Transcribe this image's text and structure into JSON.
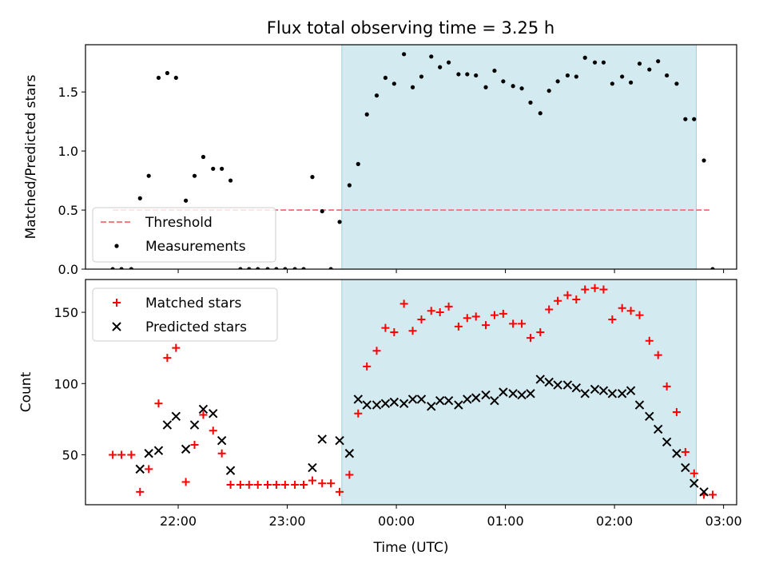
{
  "chart_data": [
    {
      "type": "scatter",
      "title": "Flux total observing time = 3.25 h",
      "xlabel": "",
      "ylabel": "Matched/Predicted stars",
      "x_unit": "time of day (UTC), hours after 00:00; 22:00 = -2",
      "xlim": [
        -2.85,
        3.12
      ],
      "ylim": [
        0,
        1.9
      ],
      "yticks": [
        0.0,
        0.5,
        1.0,
        1.5
      ],
      "ytick_labels": [
        "0.0",
        "0.5",
        "1.0",
        "1.5"
      ],
      "shaded_interval": [
        -0.5,
        2.75
      ],
      "shaded_color": "#d3eaf0",
      "legend": {
        "placement": "lower left",
        "entries": [
          "Threshold",
          "Measurements"
        ]
      },
      "threshold": {
        "name": "Threshold",
        "value": 0.5,
        "x_range": [
          -2.6,
          2.87
        ],
        "color": "#f08080",
        "style": "dashed"
      },
      "series": [
        {
          "name": "Measurements",
          "color": "#000000",
          "marker": "dot",
          "points": [
            [
              -2.6,
              0
            ],
            [
              -2.52,
              0
            ],
            [
              -2.43,
              0
            ],
            [
              -2.35,
              0.6
            ],
            [
              -2.27,
              0.79
            ],
            [
              -2.18,
              1.62
            ],
            [
              -2.1,
              1.66
            ],
            [
              -2.02,
              1.62
            ],
            [
              -1.93,
              0.58
            ],
            [
              -1.85,
              0.79
            ],
            [
              -1.77,
              0.95
            ],
            [
              -1.68,
              0.85
            ],
            [
              -1.6,
              0.85
            ],
            [
              -1.52,
              0.75
            ],
            [
              -1.43,
              0
            ],
            [
              -1.35,
              0
            ],
            [
              -1.27,
              0
            ],
            [
              -1.18,
              0
            ],
            [
              -1.1,
              0
            ],
            [
              -1.02,
              0
            ],
            [
              -0.93,
              0
            ],
            [
              -0.85,
              0
            ],
            [
              -0.77,
              0.78
            ],
            [
              -0.68,
              0.49
            ],
            [
              -0.6,
              0
            ],
            [
              -0.52,
              0.4
            ],
            [
              -0.43,
              0.71
            ],
            [
              -0.35,
              0.89
            ],
            [
              -0.27,
              1.31
            ],
            [
              -0.18,
              1.47
            ],
            [
              -0.1,
              1.62
            ],
            [
              -0.02,
              1.57
            ],
            [
              0.07,
              1.82
            ],
            [
              0.15,
              1.54
            ],
            [
              0.23,
              1.63
            ],
            [
              0.32,
              1.8
            ],
            [
              0.4,
              1.71
            ],
            [
              0.48,
              1.75
            ],
            [
              0.57,
              1.65
            ],
            [
              0.65,
              1.65
            ],
            [
              0.73,
              1.64
            ],
            [
              0.82,
              1.54
            ],
            [
              0.9,
              1.68
            ],
            [
              0.98,
              1.59
            ],
            [
              1.07,
              1.55
            ],
            [
              1.15,
              1.53
            ],
            [
              1.23,
              1.41
            ],
            [
              1.32,
              1.32
            ],
            [
              1.4,
              1.51
            ],
            [
              1.48,
              1.59
            ],
            [
              1.57,
              1.64
            ],
            [
              1.65,
              1.63
            ],
            [
              1.73,
              1.79
            ],
            [
              1.82,
              1.75
            ],
            [
              1.9,
              1.75
            ],
            [
              1.98,
              1.57
            ],
            [
              2.07,
              1.63
            ],
            [
              2.15,
              1.58
            ],
            [
              2.23,
              1.74
            ],
            [
              2.32,
              1.69
            ],
            [
              2.4,
              1.76
            ],
            [
              2.48,
              1.64
            ],
            [
              2.57,
              1.57
            ],
            [
              2.65,
              1.27
            ],
            [
              2.73,
              1.27
            ],
            [
              2.82,
              0.92
            ],
            [
              2.9,
              0
            ]
          ]
        }
      ]
    },
    {
      "type": "scatter",
      "title": "",
      "xlabel": "Time (UTC)",
      "ylabel": "Count",
      "x_unit": "time of day (UTC), hours after 00:00; 22:00 = -2",
      "xlim": [
        -2.85,
        3.12
      ],
      "ylim": [
        15,
        173
      ],
      "yticks": [
        50,
        100,
        150
      ],
      "ytick_labels": [
        "50",
        "100",
        "150"
      ],
      "xticks": [
        -2,
        -1,
        0,
        1,
        2,
        3
      ],
      "xtick_labels": [
        "22:00",
        "23:00",
        "00:00",
        "01:00",
        "02:00",
        "03:00"
      ],
      "shaded_interval": [
        -0.5,
        2.75
      ],
      "shaded_color": "#d3eaf0",
      "legend": {
        "placement": "upper left",
        "entries": [
          "Matched stars",
          "Predicted stars"
        ]
      },
      "series": [
        {
          "name": "Matched stars",
          "color": "#ff0000",
          "marker": "plus",
          "points": [
            [
              -2.6,
              50
            ],
            [
              -2.52,
              50
            ],
            [
              -2.43,
              50
            ],
            [
              -2.35,
              24
            ],
            [
              -2.27,
              40
            ],
            [
              -2.18,
              86
            ],
            [
              -2.1,
              118
            ],
            [
              -2.02,
              125
            ],
            [
              -1.93,
              31
            ],
            [
              -1.85,
              57
            ],
            [
              -1.77,
              78
            ],
            [
              -1.68,
              67
            ],
            [
              -1.6,
              51
            ],
            [
              -1.52,
              29
            ],
            [
              -1.43,
              29
            ],
            [
              -1.35,
              29
            ],
            [
              -1.27,
              29
            ],
            [
              -1.18,
              29
            ],
            [
              -1.1,
              29
            ],
            [
              -1.02,
              29
            ],
            [
              -0.93,
              29
            ],
            [
              -0.85,
              29
            ],
            [
              -0.77,
              32
            ],
            [
              -0.68,
              30
            ],
            [
              -0.6,
              30
            ],
            [
              -0.52,
              24
            ],
            [
              -0.43,
              36
            ],
            [
              -0.35,
              79
            ],
            [
              -0.27,
              112
            ],
            [
              -0.18,
              123
            ],
            [
              -0.1,
              139
            ],
            [
              -0.02,
              136
            ],
            [
              0.07,
              156
            ],
            [
              0.15,
              137
            ],
            [
              0.23,
              145
            ],
            [
              0.32,
              151
            ],
            [
              0.4,
              150
            ],
            [
              0.48,
              154
            ],
            [
              0.57,
              140
            ],
            [
              0.65,
              146
            ],
            [
              0.73,
              147
            ],
            [
              0.82,
              141
            ],
            [
              0.9,
              148
            ],
            [
              0.98,
              149
            ],
            [
              1.07,
              142
            ],
            [
              1.15,
              142
            ],
            [
              1.23,
              132
            ],
            [
              1.32,
              136
            ],
            [
              1.4,
              152
            ],
            [
              1.48,
              158
            ],
            [
              1.57,
              162
            ],
            [
              1.65,
              159
            ],
            [
              1.73,
              166
            ],
            [
              1.82,
              167
            ],
            [
              1.9,
              166
            ],
            [
              1.98,
              145
            ],
            [
              2.07,
              153
            ],
            [
              2.15,
              151
            ],
            [
              2.23,
              148
            ],
            [
              2.32,
              130
            ],
            [
              2.4,
              120
            ],
            [
              2.48,
              98
            ],
            [
              2.57,
              80
            ],
            [
              2.65,
              52
            ],
            [
              2.73,
              37
            ],
            [
              2.82,
              22
            ],
            [
              2.9,
              22
            ]
          ]
        },
        {
          "name": "Predicted stars",
          "color": "#000000",
          "marker": "x",
          "points": [
            [
              -2.35,
              40
            ],
            [
              -2.27,
              51
            ],
            [
              -2.18,
              53
            ],
            [
              -2.1,
              71
            ],
            [
              -2.02,
              77
            ],
            [
              -1.93,
              54
            ],
            [
              -1.85,
              71
            ],
            [
              -1.77,
              82
            ],
            [
              -1.68,
              79
            ],
            [
              -1.6,
              60
            ],
            [
              -1.52,
              39
            ],
            [
              -0.77,
              41
            ],
            [
              -0.68,
              61
            ],
            [
              -0.52,
              60
            ],
            [
              -0.43,
              51
            ],
            [
              -0.35,
              89
            ],
            [
              -0.27,
              85
            ],
            [
              -0.18,
              85
            ],
            [
              -0.1,
              86
            ],
            [
              -0.02,
              87
            ],
            [
              0.07,
              86
            ],
            [
              0.15,
              89
            ],
            [
              0.23,
              89
            ],
            [
              0.32,
              84
            ],
            [
              0.4,
              88
            ],
            [
              0.48,
              88
            ],
            [
              0.57,
              85
            ],
            [
              0.65,
              89
            ],
            [
              0.73,
              90
            ],
            [
              0.82,
              92
            ],
            [
              0.9,
              88
            ],
            [
              0.98,
              94
            ],
            [
              1.07,
              93
            ],
            [
              1.15,
              92
            ],
            [
              1.23,
              93
            ],
            [
              1.32,
              103
            ],
            [
              1.4,
              101
            ],
            [
              1.48,
              99
            ],
            [
              1.57,
              99
            ],
            [
              1.65,
              97
            ],
            [
              1.73,
              93
            ],
            [
              1.82,
              96
            ],
            [
              1.9,
              95
            ],
            [
              1.98,
              93
            ],
            [
              2.07,
              93
            ],
            [
              2.15,
              95
            ],
            [
              2.23,
              85
            ],
            [
              2.32,
              77
            ],
            [
              2.4,
              68
            ],
            [
              2.48,
              59
            ],
            [
              2.57,
              51
            ],
            [
              2.65,
              41
            ],
            [
              2.73,
              30
            ],
            [
              2.82,
              24
            ]
          ]
        }
      ]
    }
  ]
}
